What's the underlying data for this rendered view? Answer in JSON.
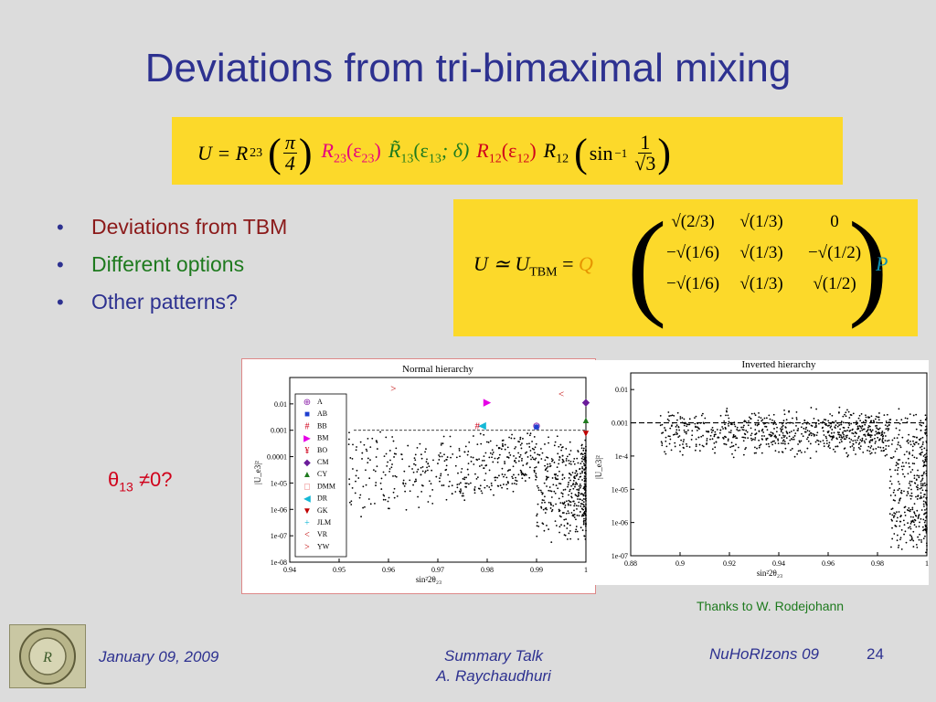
{
  "title": "Deviations from tri-bimaximal mixing",
  "equation1": {
    "lhs": "U = R",
    "sub23": "23",
    "pi": "π",
    "four": "4",
    "r23": "R",
    "r23_arg": "(ε",
    "r23_sub": "23",
    "r23_close": ")",
    "r13": "R̃",
    "r13_sub": "13",
    "r13_arg": "(ε",
    "r13_arg_sub": "13",
    "r13_delta": "; δ)",
    "r12": "R",
    "r12_sub": "12",
    "r12_arg": "(ε",
    "r12_arg_sub": "12",
    "r12_close": ")",
    "r12b": "R",
    "r12b_sub": "12",
    "sin": "sin",
    "sin_sup": "−1",
    "one": "1",
    "sqrt3": "√3"
  },
  "equation2": {
    "lhs": "U ≃ U",
    "lhs_sub": "TBM",
    "eq": " = ",
    "q": "Q",
    "p": "P",
    "matrix": [
      [
        "√(2/3)",
        "√(1/3)",
        "0"
      ],
      [
        "−√(1/6)",
        "√(1/3)",
        "−√(1/2)"
      ],
      [
        "−√(1/6)",
        "√(1/3)",
        "√(1/2)"
      ]
    ]
  },
  "bullets": [
    {
      "text": "Deviations from TBM",
      "color": "#8b1a1a"
    },
    {
      "text": "Different options",
      "color": "#1e7a1e"
    },
    {
      "text": "Other patterns?",
      "color": "#2d3190"
    }
  ],
  "theta_note": {
    "theta": "θ",
    "sub": "13",
    "rest": " ≠0?"
  },
  "chart_data": [
    {
      "type": "scatter",
      "title": "Normal hierarchy",
      "xlabel": "sin²2θ₂₃",
      "ylabel": "|U_e3|²",
      "xlim": [
        0.94,
        1.0
      ],
      "ylim_log10": [
        -8,
        -1
      ],
      "xticks": [
        "0.94",
        "0.95",
        "0.96",
        "0.97",
        "0.98",
        "0.99",
        "1"
      ],
      "yticks": [
        "1e-08",
        "1e-07",
        "1e-06",
        "1e-05",
        "0.0001",
        "0.001",
        "0.01"
      ],
      "reference_line_y": 0.001,
      "legend": {
        "placement": "left",
        "entries": [
          {
            "label": "A",
            "symbol": "⊕",
            "color": "#8e24aa"
          },
          {
            "label": "AB",
            "symbol": "■",
            "color": "#1f3fcf"
          },
          {
            "label": "BB",
            "symbol": "#",
            "color": "#d0021b"
          },
          {
            "label": "BM",
            "symbol": "▶",
            "color": "#e600e6"
          },
          {
            "label": "BO",
            "symbol": "¥",
            "color": "#d0021b"
          },
          {
            "label": "CM",
            "symbol": "◆",
            "color": "#6a1b9a"
          },
          {
            "label": "CY",
            "symbol": "▲",
            "color": "#1e7a1e"
          },
          {
            "label": "DMM",
            "symbol": "□",
            "color": "#e85d5d"
          },
          {
            "label": "DR",
            "symbol": "◀",
            "color": "#14b8d6"
          },
          {
            "label": "GK",
            "symbol": "▼",
            "color": "#c00000"
          },
          {
            "label": "JLM",
            "symbol": "+",
            "color": "#14b8d6"
          },
          {
            "label": "VR",
            "symbol": "<",
            "color": "#c00000"
          },
          {
            "label": "YW",
            "symbol": ">",
            "color": "#c00000"
          }
        ]
      },
      "model_points": [
        {
          "label": "BB",
          "x": 0.978,
          "y": 0.0015
        },
        {
          "label": "BM",
          "x": 0.98,
          "y": 0.012
        },
        {
          "label": "DR",
          "x": 0.979,
          "y": 0.0016
        },
        {
          "label": "A",
          "x": 0.99,
          "y": 0.0015
        },
        {
          "label": "AB",
          "x": 0.99,
          "y": 0.0014
        },
        {
          "label": "VR",
          "x": 0.995,
          "y": 0.025
        },
        {
          "label": "CM",
          "x": 1.0,
          "y": 0.012
        },
        {
          "label": "CY",
          "x": 1.0,
          "y": 0.0025
        },
        {
          "label": "GK",
          "x": 1.0,
          "y": 0.0008
        },
        {
          "label": "YW",
          "x": 0.961,
          "y": 0.04
        }
      ]
    },
    {
      "type": "scatter",
      "title": "Inverted hierarchy",
      "xlabel": "sin²2θ₂₃",
      "ylabel": "|U_e3|²",
      "xlim": [
        0.88,
        1.0
      ],
      "ylim_log10": [
        -7,
        -1.5
      ],
      "xticks": [
        "0.88",
        "0.9",
        "0.92",
        "0.94",
        "0.96",
        "0.98",
        "1"
      ],
      "yticks": [
        "1e-07",
        "1e-06",
        "1e-05",
        "1e-4",
        "0.001",
        "0.01"
      ],
      "reference_line_y": 0.001
    }
  ],
  "credit": "Thanks to W. Rodejohann",
  "footer": {
    "date": "January 09, 2009",
    "talk1": "Summary Talk",
    "talk2": "A. Raychaudhuri",
    "conf": "NuHoRIzons 09",
    "page": "24"
  },
  "colors": {
    "title": "#2d3190",
    "eqbox": "#fcd92a",
    "background": "#dcdcdc"
  }
}
